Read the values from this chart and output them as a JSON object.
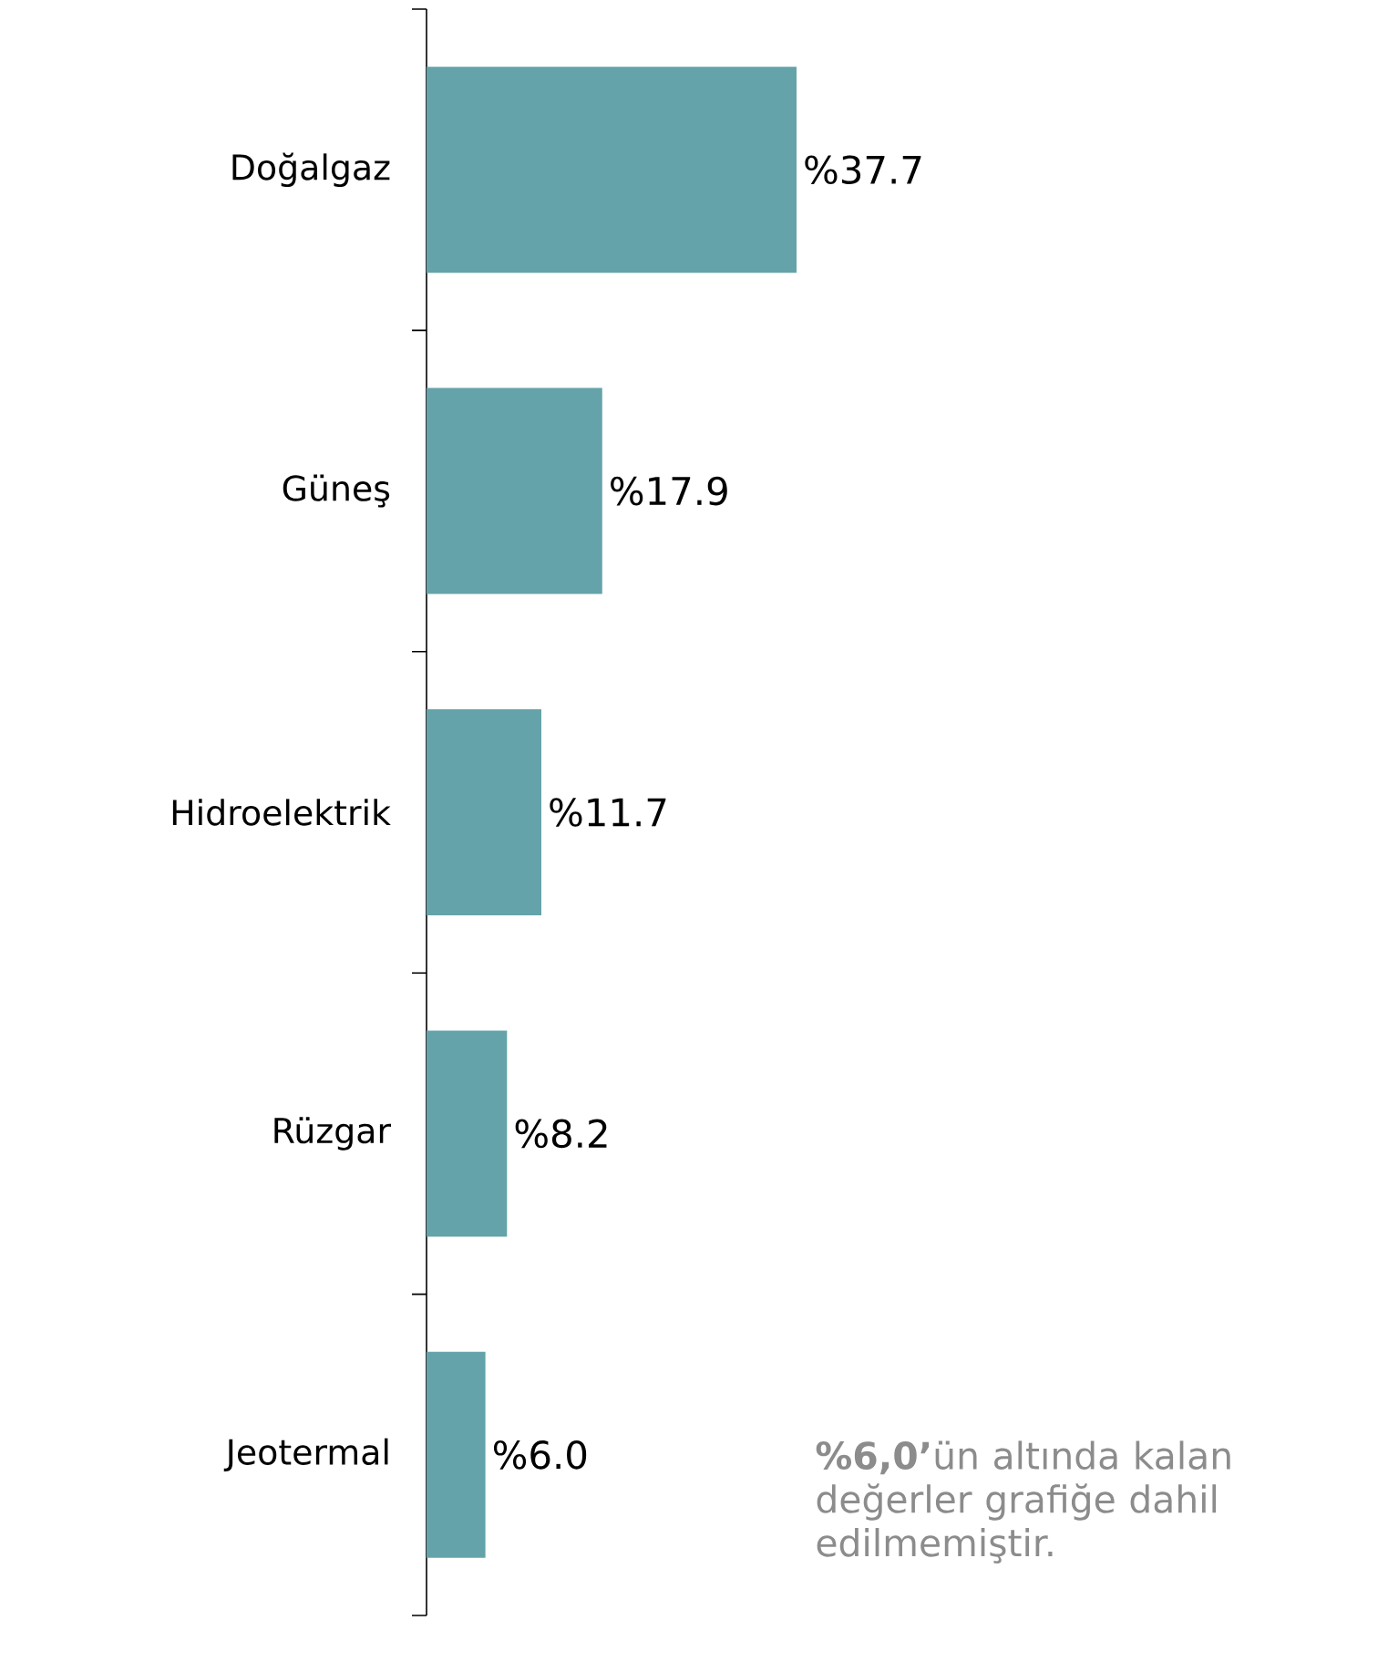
{
  "chart_data": {
    "type": "bar",
    "orientation": "horizontal",
    "categories": [
      "Doğalgaz",
      "Güneş",
      "Hidroelektrik",
      "Rüzgar",
      "Jeotermal"
    ],
    "values": [
      37.7,
      17.9,
      11.7,
      8.2,
      6.0
    ],
    "value_labels": [
      "%37.7",
      "%17.9",
      "%11.7",
      "%8.2",
      "%6.0"
    ],
    "color": "#64a3a9",
    "tick_labels": "y",
    "annotations": [
      "**%6,0’**ün altında kalan değerler grafiğe dahil edilmemiştir."
    ]
  }
}
